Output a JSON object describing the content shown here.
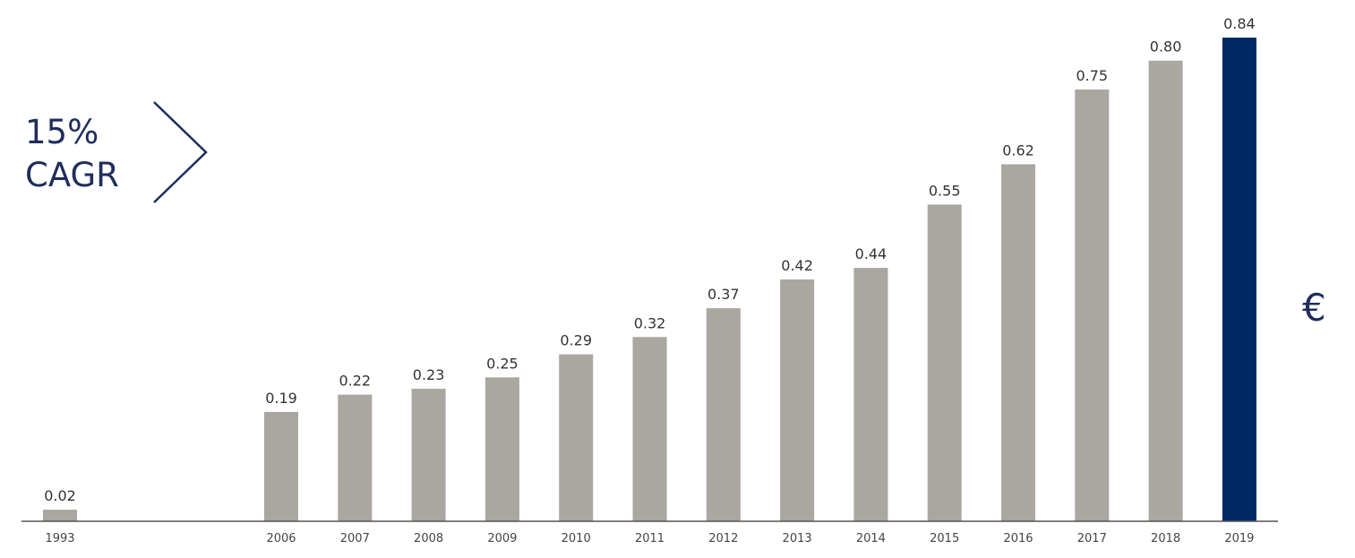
{
  "annotation": {
    "line1": "15%",
    "line2": "CAGR"
  },
  "unit_symbol": "€",
  "colors": {
    "bar_default": "#aaa6a0",
    "bar_highlight": "#002a62",
    "annotation": "#1f2d5c",
    "axis": "#555555"
  },
  "chart_data": {
    "type": "bar",
    "categories": [
      "1993",
      "2006",
      "2007",
      "2008",
      "2009",
      "2010",
      "2011",
      "2012",
      "2013",
      "2014",
      "2015",
      "2016",
      "2017",
      "2018",
      "2019"
    ],
    "values": [
      0.02,
      0.19,
      0.22,
      0.23,
      0.25,
      0.29,
      0.32,
      0.37,
      0.42,
      0.44,
      0.55,
      0.62,
      0.75,
      0.8,
      0.84
    ],
    "labels": [
      "0.02",
      "0.19",
      "0.22",
      "0.23",
      "0.25",
      "0.29",
      "0.32",
      "0.37",
      "0.42",
      "0.44",
      "0.55",
      "0.62",
      "0.75",
      "0.80",
      "0.84"
    ],
    "highlight": [
      "2019"
    ],
    "ylim": [
      0,
      0.84
    ],
    "grid": false,
    "legend": "none"
  }
}
